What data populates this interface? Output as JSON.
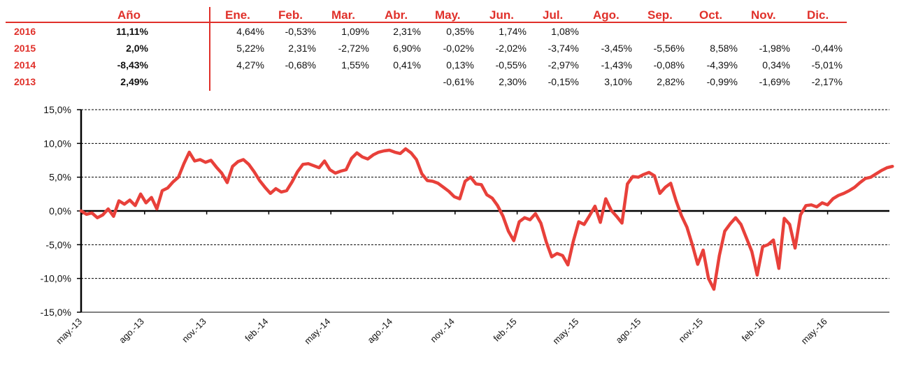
{
  "table": {
    "header": {
      "year_label": "Año",
      "months": [
        "Ene.",
        "Feb.",
        "Mar.",
        "Abr.",
        "May.",
        "Jun.",
        "Jul.",
        "Ago.",
        "Sep.",
        "Oct.",
        "Nov.",
        "Dic."
      ]
    },
    "rows": [
      {
        "year": "2016",
        "annual": "11,11%",
        "months": [
          "4,64%",
          "-0,53%",
          "1,09%",
          "2,31%",
          "0,35%",
          "1,74%",
          "1,08%",
          "",
          "",
          "",
          "",
          ""
        ]
      },
      {
        "year": "2015",
        "annual": "2,0%",
        "months": [
          "5,22%",
          "2,31%",
          "-2,72%",
          "6,90%",
          "-0,02%",
          "-2,02%",
          "-3,74%",
          "-3,45%",
          "-5,56%",
          "8,58%",
          "-1,98%",
          "-0,44%"
        ]
      },
      {
        "year": "2014",
        "annual": "-8,43%",
        "months": [
          "4,27%",
          "-0,68%",
          "1,55%",
          "0,41%",
          "0,13%",
          "-0,55%",
          "-2,97%",
          "-1,43%",
          "-0,08%",
          "-4,39%",
          "0,34%",
          "-5,01%"
        ]
      },
      {
        "year": "2013",
        "annual": "2,49%",
        "months": [
          "",
          "",
          "",
          "",
          "-0,61%",
          "2,30%",
          "-0,15%",
          "3,10%",
          "2,82%",
          "-0,99%",
          "-1,69%",
          "-2,17%"
        ]
      }
    ]
  },
  "colors": {
    "accent": "#e0302a",
    "line": "#e8403a",
    "text": "#111111"
  },
  "chart_data": {
    "type": "line",
    "title": "",
    "xlabel": "",
    "ylabel": "",
    "ylim": [
      -15,
      15
    ],
    "y_ticks": [
      -15,
      -10,
      -5,
      0,
      5,
      10,
      15
    ],
    "y_tick_labels": [
      "-15,0%",
      "-10,0%",
      "-5,0%",
      "0,0%",
      "5,0%",
      "10,0%",
      "15,0%"
    ],
    "x_tick_labels": [
      "may.-13",
      "ago.-13",
      "nov.-13",
      "feb.-14",
      "may.-14",
      "ago.-14",
      "nov.-14",
      "feb.-15",
      "may.-15",
      "ago.-15",
      "nov.-15",
      "feb.-16",
      "may.-16"
    ],
    "x_range_months": [
      0,
      39.2
    ],
    "grid": "horizontal dashed",
    "series": [
      {
        "points": [
          [
            0,
            0
          ],
          [
            0.3,
            -0.5
          ],
          [
            0.6,
            -0.3
          ],
          [
            0.9,
            -1
          ],
          [
            1.2,
            -0.6
          ],
          [
            1.5,
            0.3
          ],
          [
            1.8,
            -0.8
          ],
          [
            2.1,
            1.5
          ],
          [
            2.4,
            1
          ],
          [
            2.7,
            1.6
          ],
          [
            3.0,
            0.8
          ],
          [
            3.3,
            2.5
          ],
          [
            3.6,
            1.2
          ],
          [
            3.9,
            2
          ],
          [
            4.2,
            0.3
          ],
          [
            4.5,
            3
          ],
          [
            4.8,
            3.4
          ],
          [
            5.1,
            4.3
          ],
          [
            5.4,
            5
          ],
          [
            5.7,
            7
          ],
          [
            6.0,
            8.7
          ],
          [
            6.3,
            7.4
          ],
          [
            6.6,
            7.6
          ],
          [
            6.9,
            7.2
          ],
          [
            7.2,
            7.5
          ],
          [
            7.5,
            6.5
          ],
          [
            7.8,
            5.6
          ],
          [
            8.1,
            4.2
          ],
          [
            8.4,
            6.6
          ],
          [
            8.7,
            7.3
          ],
          [
            9.0,
            7.6
          ],
          [
            9.3,
            6.9
          ],
          [
            9.6,
            5.8
          ],
          [
            9.9,
            4.5
          ],
          [
            10.2,
            3.5
          ],
          [
            10.5,
            2.6
          ],
          [
            10.8,
            3.3
          ],
          [
            11.1,
            2.8
          ],
          [
            11.4,
            3.0
          ],
          [
            11.7,
            4.3
          ],
          [
            12.0,
            5.8
          ],
          [
            12.3,
            6.9
          ],
          [
            12.6,
            7.0
          ],
          [
            12.9,
            6.7
          ],
          [
            13.2,
            6.4
          ],
          [
            13.5,
            7.4
          ],
          [
            13.8,
            6.1
          ],
          [
            14.1,
            5.6
          ],
          [
            14.4,
            5.9
          ],
          [
            14.7,
            6.1
          ],
          [
            15.0,
            7.8
          ],
          [
            15.3,
            8.6
          ],
          [
            15.6,
            8.0
          ],
          [
            15.9,
            7.7
          ],
          [
            16.2,
            8.3
          ],
          [
            16.5,
            8.7
          ],
          [
            16.8,
            8.9
          ],
          [
            17.1,
            9.0
          ],
          [
            17.4,
            8.7
          ],
          [
            17.7,
            8.5
          ],
          [
            18.0,
            9.2
          ],
          [
            18.3,
            8.6
          ],
          [
            18.6,
            7.6
          ],
          [
            18.9,
            5.5
          ],
          [
            19.2,
            4.5
          ],
          [
            19.5,
            4.4
          ],
          [
            19.8,
            4.1
          ],
          [
            20.1,
            3.5
          ],
          [
            20.4,
            2.9
          ],
          [
            20.7,
            2.1
          ],
          [
            21.0,
            1.8
          ],
          [
            21.3,
            4.4
          ],
          [
            21.6,
            5.0
          ],
          [
            21.9,
            4.0
          ],
          [
            22.2,
            3.9
          ],
          [
            22.5,
            2.4
          ],
          [
            22.8,
            1.9
          ],
          [
            23.1,
            0.8
          ],
          [
            23.4,
            -0.8
          ],
          [
            23.7,
            -3.0
          ],
          [
            24.0,
            -4.4
          ],
          [
            24.3,
            -1.6
          ],
          [
            24.6,
            -1.0
          ],
          [
            24.9,
            -1.3
          ],
          [
            25.2,
            -0.4
          ],
          [
            25.5,
            -1.8
          ],
          [
            25.8,
            -4.6
          ],
          [
            26.1,
            -6.8
          ],
          [
            26.4,
            -6.3
          ],
          [
            26.7,
            -6.6
          ],
          [
            27.0,
            -8.0
          ],
          [
            27.3,
            -4.5
          ],
          [
            27.6,
            -1.6
          ],
          [
            27.9,
            -2.0
          ],
          [
            28.2,
            -0.7
          ],
          [
            28.5,
            0.7
          ],
          [
            28.8,
            -1.7
          ],
          [
            29.1,
            1.8
          ],
          [
            29.4,
            0.1
          ],
          [
            29.7,
            -0.8
          ],
          [
            30.0,
            -1.8
          ],
          [
            30.3,
            4.0
          ],
          [
            30.6,
            5.1
          ],
          [
            30.9,
            5.0
          ],
          [
            31.2,
            5.4
          ],
          [
            31.5,
            5.7
          ],
          [
            31.8,
            5.2
          ],
          [
            32.1,
            2.6
          ],
          [
            32.4,
            3.5
          ],
          [
            32.7,
            4.1
          ],
          [
            33.0,
            1.5
          ],
          [
            33.3,
            -0.7
          ],
          [
            33.6,
            -2.4
          ],
          [
            33.9,
            -5.0
          ],
          [
            34.2,
            -7.9
          ],
          [
            34.5,
            -5.8
          ],
          [
            34.8,
            -10.0
          ],
          [
            35.1,
            -11.6
          ],
          [
            35.4,
            -6.6
          ],
          [
            35.7,
            -3.0
          ],
          [
            36.0,
            -1.9
          ],
          [
            36.3,
            -1.0
          ],
          [
            36.6,
            -2.0
          ],
          [
            36.9,
            -4.0
          ],
          [
            37.2,
            -6.0
          ],
          [
            37.5,
            -9.5
          ],
          [
            37.8,
            -5.3
          ],
          [
            38.1,
            -5.0
          ],
          [
            38.4,
            -4.3
          ],
          [
            38.7,
            -8.5
          ],
          [
            39.0,
            -1.1
          ],
          [
            39.3,
            -2.0
          ],
          [
            39.6,
            -5.5
          ],
          [
            39.9,
            -0.6
          ],
          [
            40.2,
            0.8
          ],
          [
            40.5,
            0.9
          ],
          [
            40.8,
            0.6
          ],
          [
            41.1,
            1.2
          ],
          [
            41.4,
            0.9
          ],
          [
            41.7,
            1.8
          ],
          [
            42.0,
            2.3
          ],
          [
            42.3,
            2.6
          ],
          [
            42.6,
            3.0
          ],
          [
            42.9,
            3.5
          ],
          [
            43.2,
            4.2
          ],
          [
            43.5,
            4.8
          ],
          [
            43.8,
            5.0
          ],
          [
            44.1,
            5.5
          ],
          [
            44.4,
            6.0
          ],
          [
            44.7,
            6.4
          ],
          [
            45.0,
            6.6
          ]
        ]
      }
    ]
  }
}
